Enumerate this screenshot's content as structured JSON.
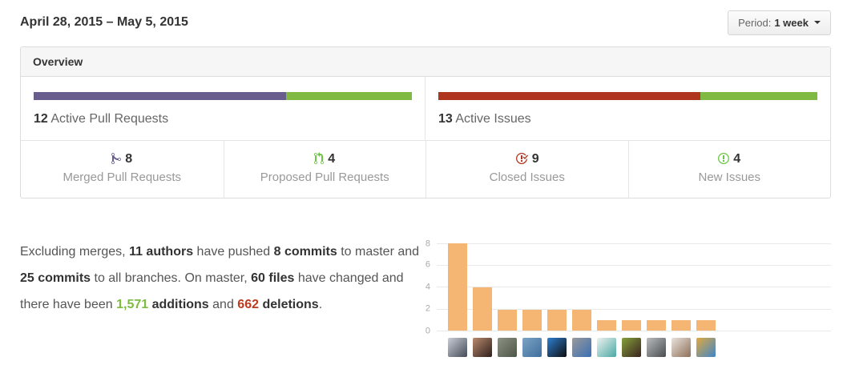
{
  "header": {
    "date_range": "April 28, 2015 – May 5, 2015",
    "period_label": "Period:",
    "period_value": "1 week"
  },
  "overview": {
    "title": "Overview",
    "pull_requests": {
      "count": "12",
      "label": "Active Pull Requests",
      "merged_pct": 66.7,
      "proposed_pct": 33.3,
      "merged_color": "#685d8d",
      "proposed_color": "#80ba42"
    },
    "issues": {
      "count": "13",
      "label": "Active Issues",
      "closed_pct": 69.2,
      "new_pct": 30.8,
      "closed_color": "#b0351f",
      "new_color": "#80ba42"
    },
    "stats": [
      {
        "icon": "git-merge-icon",
        "value": "8",
        "label": "Merged Pull Requests",
        "icon_color": "#685d8d"
      },
      {
        "icon": "git-pull-request-icon",
        "value": "4",
        "label": "Proposed Pull Requests",
        "icon_color": "#6cc644"
      },
      {
        "icon": "issue-closed-icon",
        "value": "9",
        "label": "Closed Issues",
        "icon_color": "#b0351f"
      },
      {
        "icon": "issue-opened-icon",
        "value": "4",
        "label": "New Issues",
        "icon_color": "#6cc644"
      }
    ]
  },
  "summary": {
    "segments": [
      {
        "text": "Excluding merges, ",
        "style": "normal"
      },
      {
        "text": "11 authors",
        "style": "bold"
      },
      {
        "text": " have pushed ",
        "style": "normal"
      },
      {
        "text": "8 commits",
        "style": "bold"
      },
      {
        "text": " to master and ",
        "style": "normal"
      },
      {
        "text": "25 commits",
        "style": "bold"
      },
      {
        "text": " to all branches. On master, ",
        "style": "normal"
      },
      {
        "text": "60 files",
        "style": "bold"
      },
      {
        "text": " have changed and there have been ",
        "style": "normal"
      },
      {
        "text": "1,571",
        "style": "added"
      },
      {
        "text": " ",
        "style": "normal"
      },
      {
        "text": "additions",
        "style": "bold"
      },
      {
        "text": " and ",
        "style": "normal"
      },
      {
        "text": "662",
        "style": "removed"
      },
      {
        "text": " ",
        "style": "normal"
      },
      {
        "text": "deletions",
        "style": "bold"
      },
      {
        "text": ".",
        "style": "normal"
      }
    ]
  },
  "chart_data": {
    "type": "bar",
    "categories": [
      "author-1",
      "author-2",
      "author-3",
      "author-4",
      "author-5",
      "author-6",
      "author-7",
      "author-8",
      "author-9",
      "author-10",
      "author-11"
    ],
    "values": [
      8,
      4,
      2,
      2,
      2,
      2,
      1,
      1,
      1,
      1,
      1
    ],
    "xlabel": "",
    "ylabel": "",
    "ylim": [
      0,
      8
    ],
    "yticks": [
      0,
      2,
      4,
      6,
      8
    ],
    "grid": true,
    "legend": false,
    "bar_color": "#f5b673",
    "avatars": [
      [
        "#c9ced6",
        "#454b57"
      ],
      [
        "#b98a6e",
        "#2e1f1b"
      ],
      [
        "#8d9384",
        "#4c5546"
      ],
      [
        "#7ba3c4",
        "#3f6e9e"
      ],
      [
        "#2f7fd1",
        "#0d0d0d"
      ],
      [
        "#9a9a9a",
        "#3a6fb2"
      ],
      [
        "#eef2f0",
        "#49a8a4"
      ],
      [
        "#86a03a",
        "#3a2320"
      ],
      [
        "#b9bcbe",
        "#4a4d50"
      ],
      [
        "#e8e3dd",
        "#8f6f58"
      ],
      [
        "#e0a93f",
        "#3f86c9"
      ]
    ]
  }
}
